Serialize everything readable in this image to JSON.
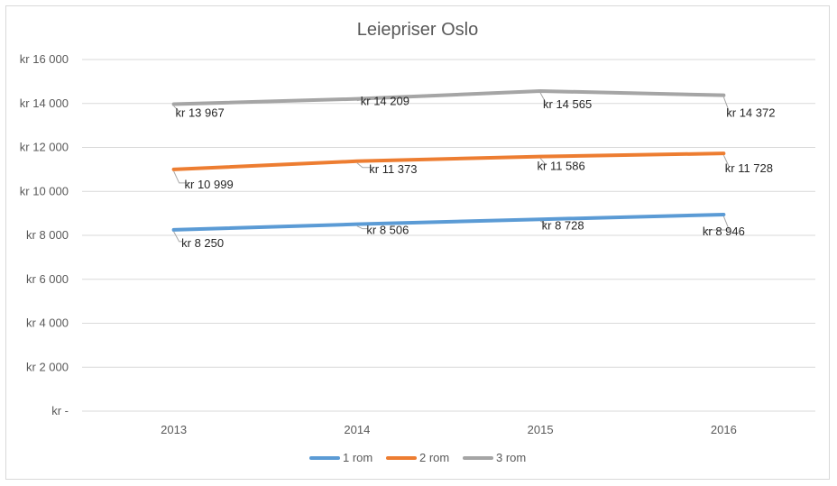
{
  "chart_data": {
    "type": "line",
    "title": "Leiepriser Oslo",
    "xlabel": "",
    "ylabel": "",
    "categories": [
      "2013",
      "2014",
      "2015",
      "2016"
    ],
    "ylim": [
      0,
      16000
    ],
    "y_ticks": [
      0,
      2000,
      4000,
      6000,
      8000,
      10000,
      12000,
      14000,
      16000
    ],
    "y_tick_labels": [
      "kr -",
      "kr 2 000",
      "kr 4 000",
      "kr 6 000",
      "kr 8 000",
      "kr 10 000",
      "kr 12 000",
      "kr 14 000",
      "kr 16 000"
    ],
    "grid": true,
    "legend_position": "bottom",
    "series": [
      {
        "name": "1 rom",
        "color": "#5b9bd5",
        "values": [
          8250,
          8506,
          8728,
          8946
        ],
        "labels": [
          "kr 8 250",
          "kr 8 506",
          "kr 8 728",
          "kr 8 946"
        ]
      },
      {
        "name": "2 rom",
        "color": "#ed7d31",
        "values": [
          10999,
          11373,
          11586,
          11728
        ],
        "labels": [
          "kr 10 999",
          "kr 11 373",
          "kr 11 586",
          "kr 11 728"
        ]
      },
      {
        "name": "3 rom",
        "color": "#a5a5a5",
        "values": [
          13967,
          14209,
          14565,
          14372
        ],
        "labels": [
          "kr 13 967",
          "kr 14 209",
          "kr 14 565",
          "kr 14 372"
        ]
      }
    ]
  }
}
